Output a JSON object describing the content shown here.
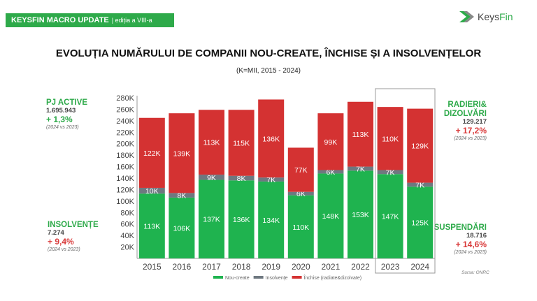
{
  "header": {
    "banner_title": "KEYSFIN MACRO UPDATE",
    "banner_edition": "| ediția a VIII-a",
    "logo_keys": "Keys",
    "logo_fin": "Fin"
  },
  "kpis": {
    "pj_active": {
      "label": "PJ ACTIVE",
      "value": "1.695.943",
      "change": "+ 1,3%",
      "note": "(2024 vs 2023)"
    },
    "insolvente": {
      "label": "INSOLVENȚE",
      "value": "7.274",
      "change": "+ 9,4%",
      "note": "(2024 vs 2023)"
    },
    "radieri": {
      "label1": "RADIERI&",
      "label2": "DIZOLVĂRI",
      "value": "129.217",
      "change": "+ 17,2%",
      "note": "(2024 vs 2023)"
    },
    "suspendari": {
      "label": "SUSPENDĂRI",
      "value": "18.716",
      "change": "+ 14,6%",
      "note": "(2024 vs 2023)"
    }
  },
  "source": "Sursa: ONRC",
  "chart_data": {
    "type": "bar",
    "stacked": true,
    "title": "EVOLUȚIA NUMĂRULUI DE COMPANII NOU-CREATE, ÎNCHISE ȘI A INSOLVENȚELOR",
    "subtitle": "(K=MII, 2015 - 2024)",
    "categories": [
      "2015",
      "2016",
      "2017",
      "2018",
      "2019",
      "2020",
      "2021",
      "2022",
      "2023",
      "2024"
    ],
    "yticks": [
      "20K",
      "40K",
      "60K",
      "80K",
      "100K",
      "120K",
      "140K",
      "160K",
      "180K",
      "200K",
      "220K",
      "240K",
      "260K",
      "280K"
    ],
    "ylim": [
      0,
      280
    ],
    "legend_position": "bottom",
    "highlighted": [
      "2023",
      "2024"
    ],
    "series": [
      {
        "name": "Nou-create",
        "color": "#1fb34f",
        "values": [
          113,
          106,
          137,
          136,
          134,
          110,
          148,
          153,
          147,
          125
        ],
        "labels": [
          "113K",
          "106K",
          "137K",
          "136K",
          "134K",
          "110K",
          "148K",
          "153K",
          "147K",
          "125K"
        ]
      },
      {
        "name": "Insolvențe",
        "color": "#6e7880",
        "values": [
          10,
          8,
          9,
          8,
          7,
          6,
          6,
          7,
          7,
          7
        ],
        "labels": [
          "10K",
          "8K",
          "9K",
          "8K",
          "7K",
          "6K",
          "6K",
          "7K",
          "7K",
          "7K"
        ]
      },
      {
        "name": "Închise (radiate&dizolvate)",
        "color": "#d43232",
        "values": [
          122,
          139,
          113,
          115,
          136,
          77,
          99,
          113,
          110,
          129
        ],
        "labels": [
          "122K",
          "139K",
          "113K",
          "115K",
          "136K",
          "77K",
          "99K",
          "113K",
          "110K",
          "129K"
        ]
      }
    ]
  }
}
